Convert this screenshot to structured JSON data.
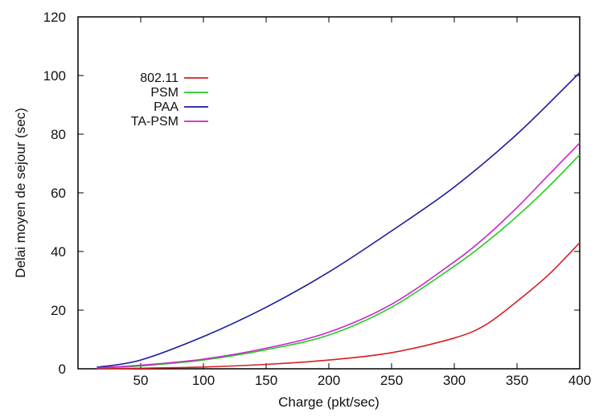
{
  "chart_data": {
    "type": "line",
    "title": "",
    "xlabel": "Charge (pkt/sec)",
    "ylabel": "Delai moyen de sejour (sec)",
    "xlim": [
      0,
      400
    ],
    "ylim": [
      0,
      120
    ],
    "x_ticks": [
      50,
      100,
      150,
      200,
      250,
      300,
      350,
      400
    ],
    "y_ticks": [
      0,
      20,
      40,
      60,
      80,
      100,
      120
    ],
    "x_tick_labels": [
      "50",
      "100",
      "150",
      "200",
      "250",
      "300",
      "350",
      "400"
    ],
    "y_tick_labels": [
      "0",
      "20",
      "40",
      "60",
      "80",
      "100",
      "120"
    ],
    "grid": false,
    "legend_position": "top-left",
    "series": [
      {
        "name": "802.11",
        "color": "#d42020",
        "x": [
          15,
          50,
          100,
          150,
          200,
          250,
          300,
          325,
          350,
          375,
          400
        ],
        "y": [
          0,
          0.2,
          0.6,
          1.5,
          3,
          5.5,
          10.5,
          15,
          23,
          32,
          43
        ]
      },
      {
        "name": "PSM",
        "color": "#22cc22",
        "x": [
          15,
          50,
          100,
          150,
          200,
          250,
          300,
          325,
          350,
          375,
          400
        ],
        "y": [
          0.3,
          1,
          3,
          6.5,
          11.5,
          21,
          35,
          43,
          52,
          62,
          73
        ]
      },
      {
        "name": "PAA",
        "color": "#1a1aa0",
        "x": [
          15,
          50,
          100,
          150,
          200,
          250,
          300,
          350,
          400
        ],
        "y": [
          0.5,
          3,
          11,
          21,
          33,
          47,
          62,
          80,
          101
        ]
      },
      {
        "name": "TA-PSM",
        "color": "#cc22cc",
        "x": [
          15,
          50,
          100,
          150,
          200,
          250,
          300,
          325,
          350,
          375,
          400
        ],
        "y": [
          0.3,
          1.2,
          3.3,
          7,
          12.5,
          22,
          36.5,
          45,
          55,
          66,
          77
        ]
      }
    ]
  }
}
